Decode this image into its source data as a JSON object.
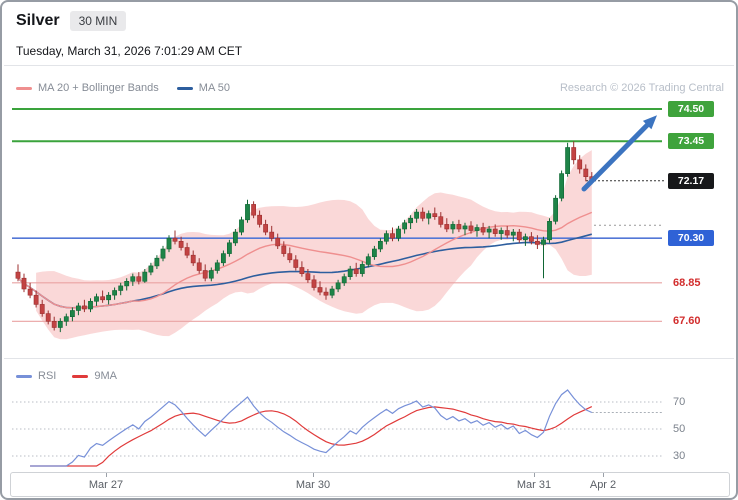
{
  "header": {
    "title": "Silver",
    "timeframe": "30 MIN",
    "datetime": "Tuesday, March 31, 2026 7:01:29 AM CET"
  },
  "legend": {
    "ma20": "MA 20 + Bollinger Bands",
    "ma50": "MA 50"
  },
  "rsi_legend": {
    "rsi": "RSI",
    "ma9": "9MA"
  },
  "branding": {
    "watermark": "Research © 2026 Trading Central"
  },
  "colors": {
    "up": "#1e8448",
    "up_stroke": "#0f6634",
    "down": "#c24343",
    "down_stroke": "#9c2f2f",
    "band_fill": "rgba(243,153,153,0.38)",
    "ma20": "#ef8f8f",
    "ma50": "#2d5e9e",
    "resistance_green": "#3aa33c",
    "support_blue": "#5377d6",
    "support_red_line": "#e9a3a3",
    "last_price_black": "#333333",
    "rsi_line": "#7790d8",
    "rsi_ma_line": "#e03a3a",
    "arrow_blue": "#3c74c0",
    "grid_dotted": "#b9bec6"
  },
  "chart_data": {
    "type": "candlestick",
    "title": "Silver 30 MIN candlestick chart with Bollinger Bands, MA50 and RSI",
    "x_axis_labels": [
      "Mar 27",
      "Mar 30",
      "Mar 31",
      "Apr 2"
    ],
    "ylim": [
      66.9,
      74.9
    ],
    "levels": [
      {
        "value": "74.50",
        "price": 74.5,
        "role": "resistance-target",
        "style": "green"
      },
      {
        "value": "73.45",
        "price": 73.45,
        "role": "resistance",
        "style": "green"
      },
      {
        "value": "72.17",
        "price": 72.17,
        "role": "last-price",
        "style": "black"
      },
      {
        "value": "70.30",
        "price": 70.3,
        "role": "support",
        "style": "blue"
      },
      {
        "value": "68.85",
        "price": 68.85,
        "role": "support",
        "style": "red"
      },
      {
        "value": "67.60",
        "price": 67.6,
        "role": "support",
        "style": "red"
      }
    ],
    "annotations": [
      {
        "type": "forecast-arrow",
        "direction": "up",
        "from_price": 71.9,
        "to_price": 74.3
      }
    ],
    "indicators": {
      "ma_short": 20,
      "ma_long": 50,
      "bollinger_mult": 2,
      "rsi_period": 14,
      "rsi_ma": 9
    },
    "rsi_gridlines": [
      70,
      50,
      30
    ],
    "candles_format": "[open, high, low, close] — estimated from chart",
    "candles": [
      [
        69.2,
        69.45,
        68.9,
        69.0
      ],
      [
        69.0,
        69.15,
        68.55,
        68.65
      ],
      [
        68.65,
        68.85,
        68.35,
        68.45
      ],
      [
        68.45,
        68.6,
        68.05,
        68.15
      ],
      [
        68.15,
        68.3,
        67.75,
        67.85
      ],
      [
        67.85,
        67.95,
        67.5,
        67.6
      ],
      [
        67.6,
        67.75,
        67.3,
        67.4
      ],
      [
        67.4,
        67.7,
        67.25,
        67.6
      ],
      [
        67.6,
        67.85,
        67.45,
        67.75
      ],
      [
        67.75,
        68.05,
        67.6,
        67.95
      ],
      [
        67.95,
        68.2,
        67.8,
        68.1
      ],
      [
        68.1,
        68.3,
        67.9,
        68.0
      ],
      [
        68.0,
        68.35,
        67.9,
        68.25
      ],
      [
        68.25,
        68.5,
        68.1,
        68.4
      ],
      [
        68.4,
        68.6,
        68.2,
        68.3
      ],
      [
        68.3,
        68.55,
        68.15,
        68.45
      ],
      [
        68.45,
        68.7,
        68.3,
        68.6
      ],
      [
        68.6,
        68.85,
        68.45,
        68.75
      ],
      [
        68.75,
        69.0,
        68.6,
        68.9
      ],
      [
        68.9,
        69.15,
        68.75,
        69.05
      ],
      [
        69.05,
        69.2,
        68.8,
        68.9
      ],
      [
        68.9,
        69.3,
        68.85,
        69.2
      ],
      [
        69.2,
        69.5,
        69.1,
        69.4
      ],
      [
        69.4,
        69.75,
        69.3,
        69.65
      ],
      [
        69.65,
        70.05,
        69.55,
        69.95
      ],
      [
        69.95,
        70.4,
        69.85,
        70.3
      ],
      [
        70.3,
        70.55,
        70.1,
        70.2
      ],
      [
        70.2,
        70.35,
        69.9,
        70.0
      ],
      [
        70.0,
        70.15,
        69.65,
        69.75
      ],
      [
        69.75,
        69.9,
        69.4,
        69.5
      ],
      [
        69.5,
        69.65,
        69.15,
        69.25
      ],
      [
        69.25,
        69.45,
        68.9,
        69.0
      ],
      [
        69.0,
        69.35,
        68.9,
        69.25
      ],
      [
        69.25,
        69.6,
        69.15,
        69.5
      ],
      [
        69.5,
        69.9,
        69.4,
        69.8
      ],
      [
        69.8,
        70.25,
        69.7,
        70.15
      ],
      [
        70.15,
        70.6,
        70.05,
        70.5
      ],
      [
        70.5,
        71.0,
        70.4,
        70.9
      ],
      [
        70.9,
        71.55,
        70.8,
        71.4
      ],
      [
        71.4,
        71.5,
        70.95,
        71.05
      ],
      [
        71.05,
        71.2,
        70.65,
        70.75
      ],
      [
        70.75,
        70.9,
        70.4,
        70.5
      ],
      [
        70.5,
        70.7,
        70.2,
        70.3
      ],
      [
        70.3,
        70.45,
        69.95,
        70.05
      ],
      [
        70.05,
        70.2,
        69.7,
        69.8
      ],
      [
        69.8,
        70.0,
        69.5,
        69.6
      ],
      [
        69.6,
        69.75,
        69.25,
        69.35
      ],
      [
        69.35,
        69.55,
        69.05,
        69.15
      ],
      [
        69.15,
        69.3,
        68.85,
        68.95
      ],
      [
        68.95,
        69.1,
        68.6,
        68.7
      ],
      [
        68.7,
        68.9,
        68.45,
        68.55
      ],
      [
        68.55,
        68.7,
        68.3,
        68.45
      ],
      [
        68.45,
        68.75,
        68.35,
        68.65
      ],
      [
        68.65,
        68.95,
        68.55,
        68.85
      ],
      [
        68.85,
        69.15,
        68.75,
        69.05
      ],
      [
        69.05,
        69.4,
        68.95,
        69.3
      ],
      [
        69.3,
        69.5,
        69.05,
        69.15
      ],
      [
        69.15,
        69.55,
        69.05,
        69.45
      ],
      [
        69.45,
        69.8,
        69.35,
        69.7
      ],
      [
        69.7,
        70.05,
        69.6,
        69.95
      ],
      [
        69.95,
        70.3,
        69.85,
        70.2
      ],
      [
        70.2,
        70.55,
        70.1,
        70.45
      ],
      [
        70.45,
        70.65,
        70.2,
        70.3
      ],
      [
        70.3,
        70.7,
        70.2,
        70.6
      ],
      [
        70.6,
        70.9,
        70.45,
        70.8
      ],
      [
        70.8,
        71.05,
        70.6,
        70.95
      ],
      [
        70.95,
        71.25,
        70.8,
        71.15
      ],
      [
        71.15,
        71.3,
        70.85,
        70.95
      ],
      [
        70.95,
        71.2,
        70.75,
        71.1
      ],
      [
        71.1,
        71.3,
        70.9,
        71.0
      ],
      [
        71.0,
        71.15,
        70.65,
        70.75
      ],
      [
        70.75,
        70.95,
        70.5,
        70.6
      ],
      [
        70.6,
        70.85,
        70.45,
        70.75
      ],
      [
        70.75,
        70.9,
        70.5,
        70.6
      ],
      [
        70.6,
        70.8,
        70.4,
        70.7
      ],
      [
        70.7,
        70.85,
        70.45,
        70.55
      ],
      [
        70.55,
        70.75,
        70.35,
        70.65
      ],
      [
        70.65,
        70.8,
        70.4,
        70.5
      ],
      [
        70.5,
        70.7,
        70.3,
        70.6
      ],
      [
        70.6,
        70.75,
        70.35,
        70.45
      ],
      [
        70.45,
        70.65,
        70.25,
        70.55
      ],
      [
        70.55,
        70.7,
        70.3,
        70.4
      ],
      [
        70.4,
        70.6,
        70.2,
        70.5
      ],
      [
        70.5,
        70.6,
        70.15,
        70.25
      ],
      [
        70.25,
        70.45,
        70.05,
        70.35
      ],
      [
        70.35,
        70.5,
        70.1,
        70.2
      ],
      [
        70.2,
        70.4,
        69.95,
        70.1
      ],
      [
        70.1,
        70.35,
        69.0,
        70.25
      ],
      [
        70.25,
        70.95,
        70.15,
        70.85
      ],
      [
        70.85,
        71.7,
        70.75,
        71.6
      ],
      [
        71.6,
        72.5,
        71.5,
        72.4
      ],
      [
        72.4,
        73.4,
        72.3,
        73.25
      ],
      [
        73.25,
        73.45,
        72.7,
        72.85
      ],
      [
        72.85,
        73.0,
        72.4,
        72.55
      ],
      [
        72.55,
        72.7,
        72.15,
        72.3
      ],
      [
        72.3,
        72.45,
        72.05,
        72.17
      ]
    ]
  }
}
